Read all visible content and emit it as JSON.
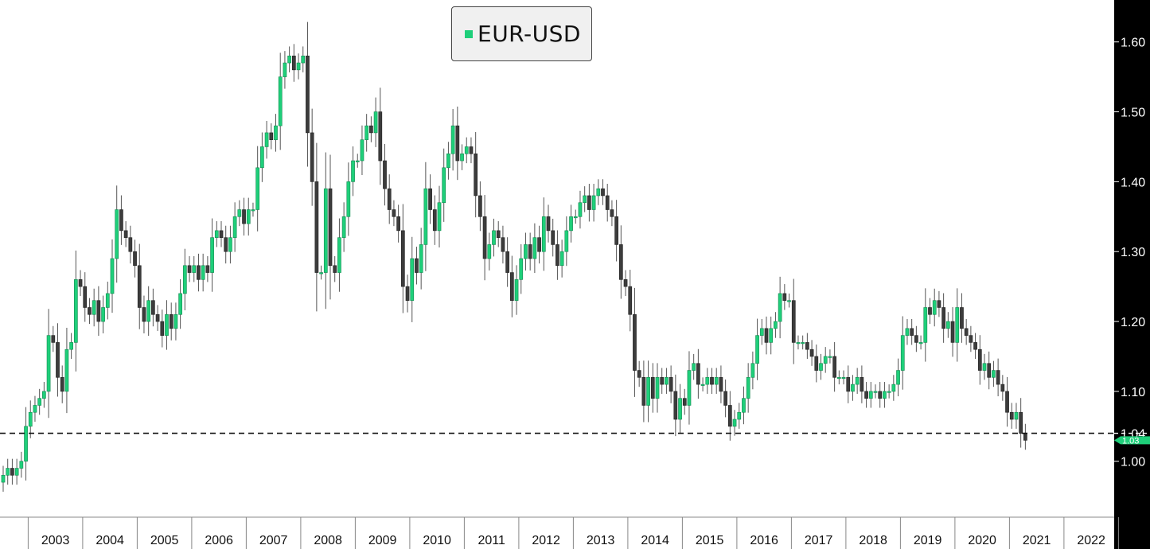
{
  "chart_data": {
    "type": "candlestick",
    "title": "",
    "xlabel": "",
    "ylabel": "",
    "interval": "monthly",
    "x_range": [
      "2002-07",
      "2022-07"
    ],
    "ylim": [
      0.92,
      1.66
    ],
    "y_ticks": [
      "1.00",
      "1.10",
      "1.20",
      "1.30",
      "1.40",
      "1.50",
      "1.60"
    ],
    "x_ticks": [
      "2003",
      "2004",
      "2005",
      "2006",
      "2007",
      "2008",
      "2009",
      "2010",
      "2011",
      "2012",
      "2013",
      "2014",
      "2015",
      "2016",
      "2017",
      "2018",
      "2019",
      "2020",
      "2021",
      "2022"
    ],
    "legend": {
      "label": "EUR-USD",
      "position": "top-center"
    },
    "reference_line": {
      "value": 1.04,
      "label": "1.04",
      "style": "dashed"
    },
    "last_value": {
      "label": "1.03",
      "value": 1.03
    },
    "series": [
      {
        "name": "EUR-USD",
        "close": [
          0.98,
          0.99,
          0.98,
          0.99,
          1.0,
          1.05,
          1.07,
          1.08,
          1.09,
          1.1,
          1.18,
          1.17,
          1.12,
          1.1,
          1.16,
          1.17,
          1.26,
          1.25,
          1.22,
          1.21,
          1.23,
          1.2,
          1.22,
          1.24,
          1.29,
          1.36,
          1.33,
          1.32,
          1.3,
          1.28,
          1.22,
          1.2,
          1.23,
          1.21,
          1.2,
          1.18,
          1.21,
          1.19,
          1.21,
          1.24,
          1.28,
          1.27,
          1.28,
          1.26,
          1.28,
          1.27,
          1.32,
          1.33,
          1.32,
          1.3,
          1.32,
          1.35,
          1.36,
          1.34,
          1.36,
          1.36,
          1.42,
          1.45,
          1.47,
          1.46,
          1.48,
          1.55,
          1.57,
          1.58,
          1.56,
          1.57,
          1.58,
          1.47,
          1.4,
          1.27,
          1.27,
          1.39,
          1.28,
          1.27,
          1.32,
          1.35,
          1.4,
          1.43,
          1.43,
          1.46,
          1.48,
          1.47,
          1.5,
          1.43,
          1.39,
          1.36,
          1.35,
          1.33,
          1.25,
          1.23,
          1.29,
          1.27,
          1.31,
          1.39,
          1.36,
          1.33,
          1.37,
          1.42,
          1.44,
          1.48,
          1.43,
          1.44,
          1.45,
          1.44,
          1.38,
          1.35,
          1.29,
          1.31,
          1.33,
          1.32,
          1.3,
          1.27,
          1.23,
          1.26,
          1.29,
          1.31,
          1.29,
          1.32,
          1.3,
          1.35,
          1.33,
          1.31,
          1.28,
          1.3,
          1.33,
          1.35,
          1.35,
          1.37,
          1.38,
          1.36,
          1.38,
          1.39,
          1.38,
          1.36,
          1.35,
          1.31,
          1.26,
          1.25,
          1.21,
          1.13,
          1.12,
          1.08,
          1.12,
          1.09,
          1.12,
          1.11,
          1.12,
          1.1,
          1.06,
          1.09,
          1.08,
          1.13,
          1.14,
          1.11,
          1.11,
          1.12,
          1.11,
          1.12,
          1.1,
          1.08,
          1.05,
          1.06,
          1.07,
          1.09,
          1.12,
          1.14,
          1.18,
          1.19,
          1.17,
          1.19,
          1.2,
          1.24,
          1.23,
          1.23,
          1.17,
          1.17,
          1.17,
          1.16,
          1.15,
          1.13,
          1.14,
          1.15,
          1.15,
          1.12,
          1.12,
          1.12,
          1.1,
          1.11,
          1.12,
          1.1,
          1.09,
          1.1,
          1.1,
          1.09,
          1.1,
          1.1,
          1.11,
          1.13,
          1.18,
          1.19,
          1.18,
          1.17,
          1.17,
          1.22,
          1.21,
          1.23,
          1.22,
          1.19,
          1.2,
          1.17,
          1.22,
          1.19,
          1.18,
          1.17,
          1.16,
          1.13,
          1.14,
          1.12,
          1.13,
          1.11,
          1.1,
          1.07,
          1.06,
          1.07,
          1.04,
          1.03
        ]
      }
    ]
  }
}
